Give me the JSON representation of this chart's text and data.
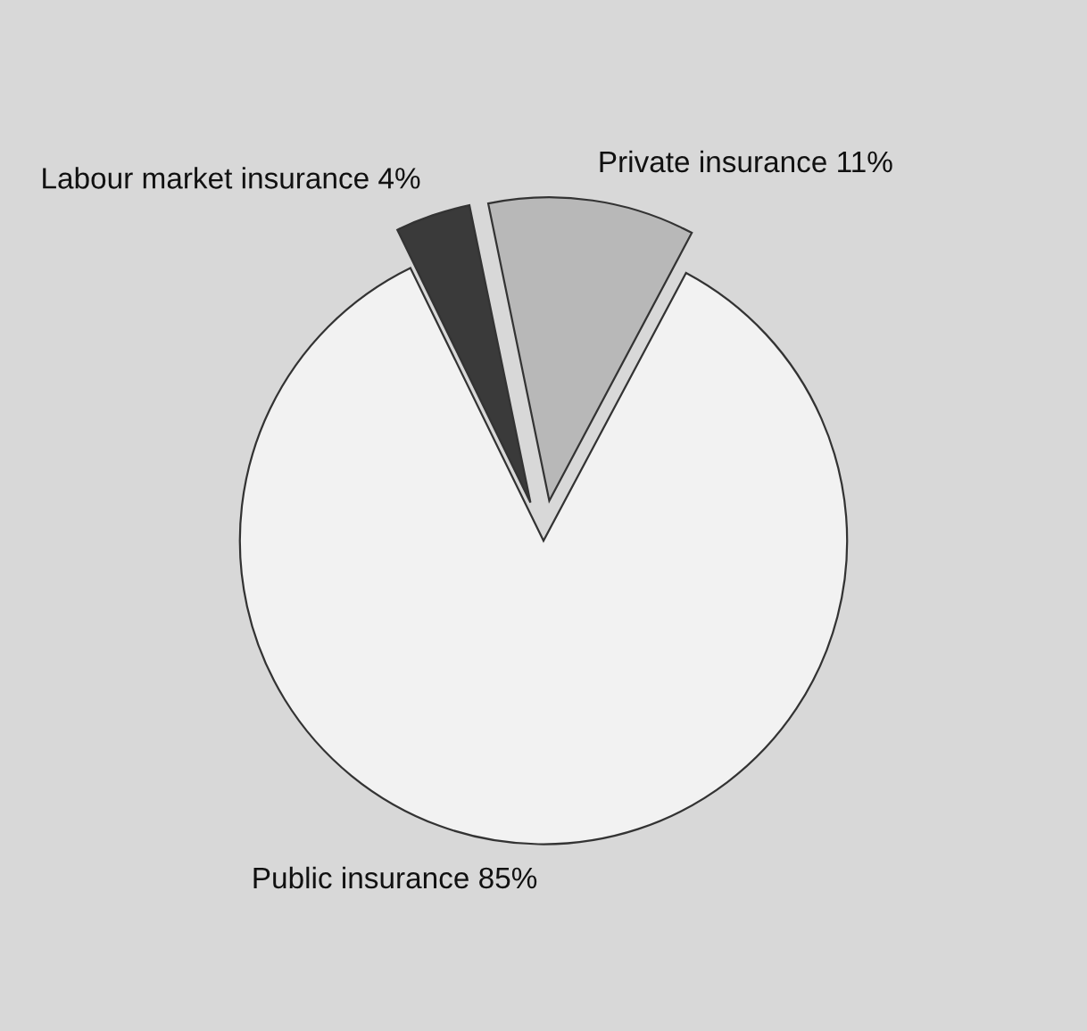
{
  "chart_data": {
    "type": "pie",
    "categories": [
      "Private insurance",
      "Labour market insurance",
      "Public insurance"
    ],
    "values": [
      11,
      4,
      85
    ],
    "value_labels": [
      "11%",
      "4%",
      "85%"
    ],
    "colors": [
      "#b8b8b8",
      "#3a3a3a",
      "#f2f2f2"
    ]
  }
}
